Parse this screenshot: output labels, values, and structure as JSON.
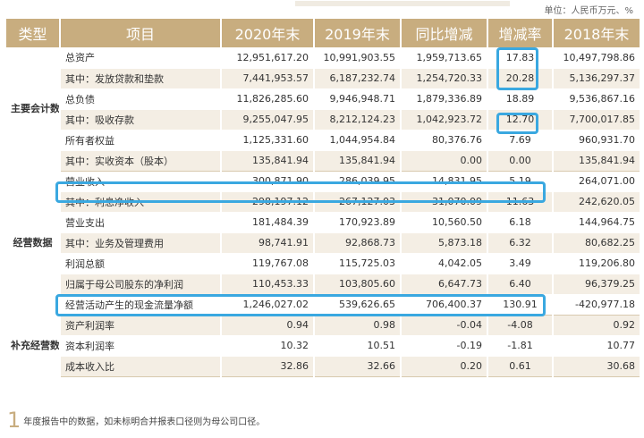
{
  "unit": "单位：人民币万元、%",
  "headers": [
    "类型",
    "项目",
    "2020年末",
    "2019年末",
    "同比增减",
    "增减率",
    "2018年末"
  ],
  "sections": [
    {
      "category": "主要会计数据",
      "rows": [
        {
          "item": "总资产",
          "v2020": "12,951,617.20",
          "v2019": "10,991,903.55",
          "yoy": "1,959,713.65",
          "rate": "17.83",
          "v2018": "10,497,798.86"
        },
        {
          "item": "其中：发放贷款和垫款",
          "v2020": "7,441,953.57",
          "v2019": "6,187,232.74",
          "yoy": "1,254,720.33",
          "rate": "20.28",
          "v2018": "5,136,297.37"
        },
        {
          "item": "总负债",
          "v2020": "11,826,285.60",
          "v2019": "9,946,948.71",
          "yoy": "1,879,336.89",
          "rate": "18.89",
          "v2018": "9,536,867.16"
        },
        {
          "item": "其中：吸收存款",
          "v2020": "9,255,047.95",
          "v2019": "8,212,124.23",
          "yoy": "1,042,923.72",
          "rate": "12.70",
          "v2018": "7,700,017.85"
        },
        {
          "item": "所有者权益",
          "v2020": "1,125,331.60",
          "v2019": "1,044,954.84",
          "yoy": "80,376.76",
          "rate": "7.69",
          "v2018": "960,931.70"
        },
        {
          "item": "其中：实收资本（股本）",
          "v2020": "135,841.94",
          "v2019": "135,841.94",
          "yoy": "0.00",
          "rate": "0.00",
          "v2018": "135,841.94"
        }
      ]
    },
    {
      "category": "经营数据",
      "rows": [
        {
          "item": "营业收入",
          "v2020": "300,871.90",
          "v2019": "286,039.95",
          "yoy": "14,831.95",
          "rate": "5.19",
          "v2018": "264,071.00"
        },
        {
          "item": "其中：利息净收入",
          "v2020": "298,197.12",
          "v2019": "267,127.03",
          "yoy": "31,070.09",
          "rate": "11.63",
          "v2018": "242,620.05"
        },
        {
          "item": "营业支出",
          "v2020": "181,484.39",
          "v2019": "170,923.89",
          "yoy": "10,560.50",
          "rate": "6.18",
          "v2018": "144,964.75"
        },
        {
          "item": "其中：业务及管理费用",
          "v2020": "98,741.91",
          "v2019": "92,868.73",
          "yoy": "5,873.18",
          "rate": "6.32",
          "v2018": "80,682.25"
        },
        {
          "item": "利润总额",
          "v2020": "119,767.08",
          "v2019": "115,725.03",
          "yoy": "4,042.05",
          "rate": "3.49",
          "v2018": "119,206.80"
        },
        {
          "item": "归属于母公司股东的净利润",
          "v2020": "110,453.33",
          "v2019": "103,805.60",
          "yoy": "6,647.73",
          "rate": "6.40",
          "v2018": "96,379.25"
        },
        {
          "item": "经营活动产生的现金流量净额",
          "v2020": "1,246,027.02",
          "v2019": "539,626.65",
          "yoy": "706,400.37",
          "rate": "130.91",
          "v2018": "-420,977.18"
        }
      ]
    },
    {
      "category": "补充经营数据",
      "rows": [
        {
          "item": "资产利润率",
          "v2020": "0.94",
          "v2019": "0.98",
          "yoy": "-0.04",
          "rate": "-4.08",
          "v2018": "0.92"
        },
        {
          "item": "资本利润率",
          "v2020": "10.32",
          "v2019": "10.51",
          "yoy": "-0.19",
          "rate": "-1.81",
          "v2018": "10.77"
        },
        {
          "item": "成本收入比",
          "v2020": "32.86",
          "v2019": "32.66",
          "yoy": "0.20",
          "rate": "0.61",
          "v2018": "30.68"
        }
      ]
    }
  ],
  "footnote_mark": "1",
  "footnote": "年度报告中的数据，如未标明合并报表口径则为母公司口径。",
  "highlight_color": "#3aa8e0",
  "header_color": "#c8ad7f"
}
